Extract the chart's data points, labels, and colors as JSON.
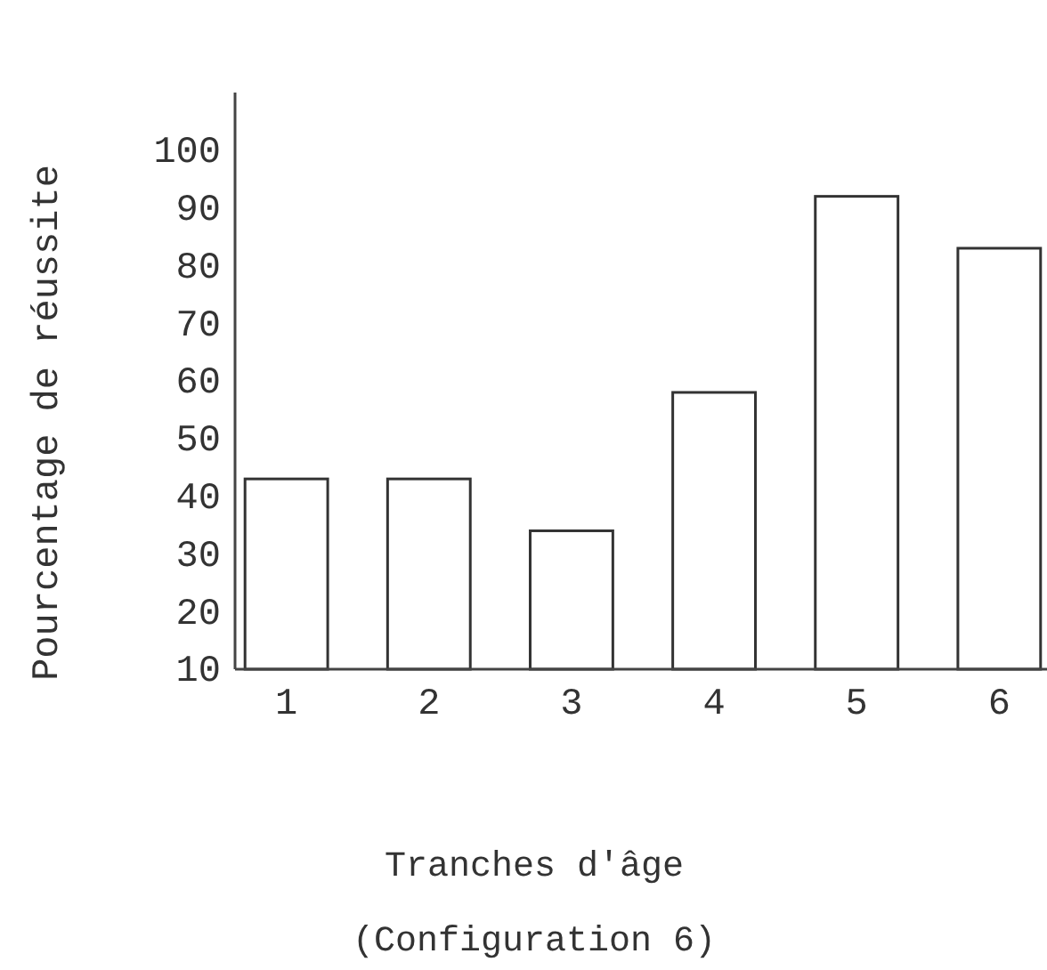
{
  "chart_data": {
    "type": "bar",
    "xlabel": "Tranches d'âge",
    "ylabel": "Pourcentage de réussite",
    "annotations": [
      "(Configuration 6)"
    ],
    "categories": [
      "1",
      "2",
      "3",
      "4",
      "5",
      "6"
    ],
    "values": [
      43,
      43,
      34,
      58,
      92,
      83
    ],
    "color": "#ffffff",
    "ylim": [
      10,
      110
    ],
    "yticks": [
      10,
      20,
      30,
      40,
      50,
      60,
      70,
      80,
      90,
      100
    ]
  }
}
